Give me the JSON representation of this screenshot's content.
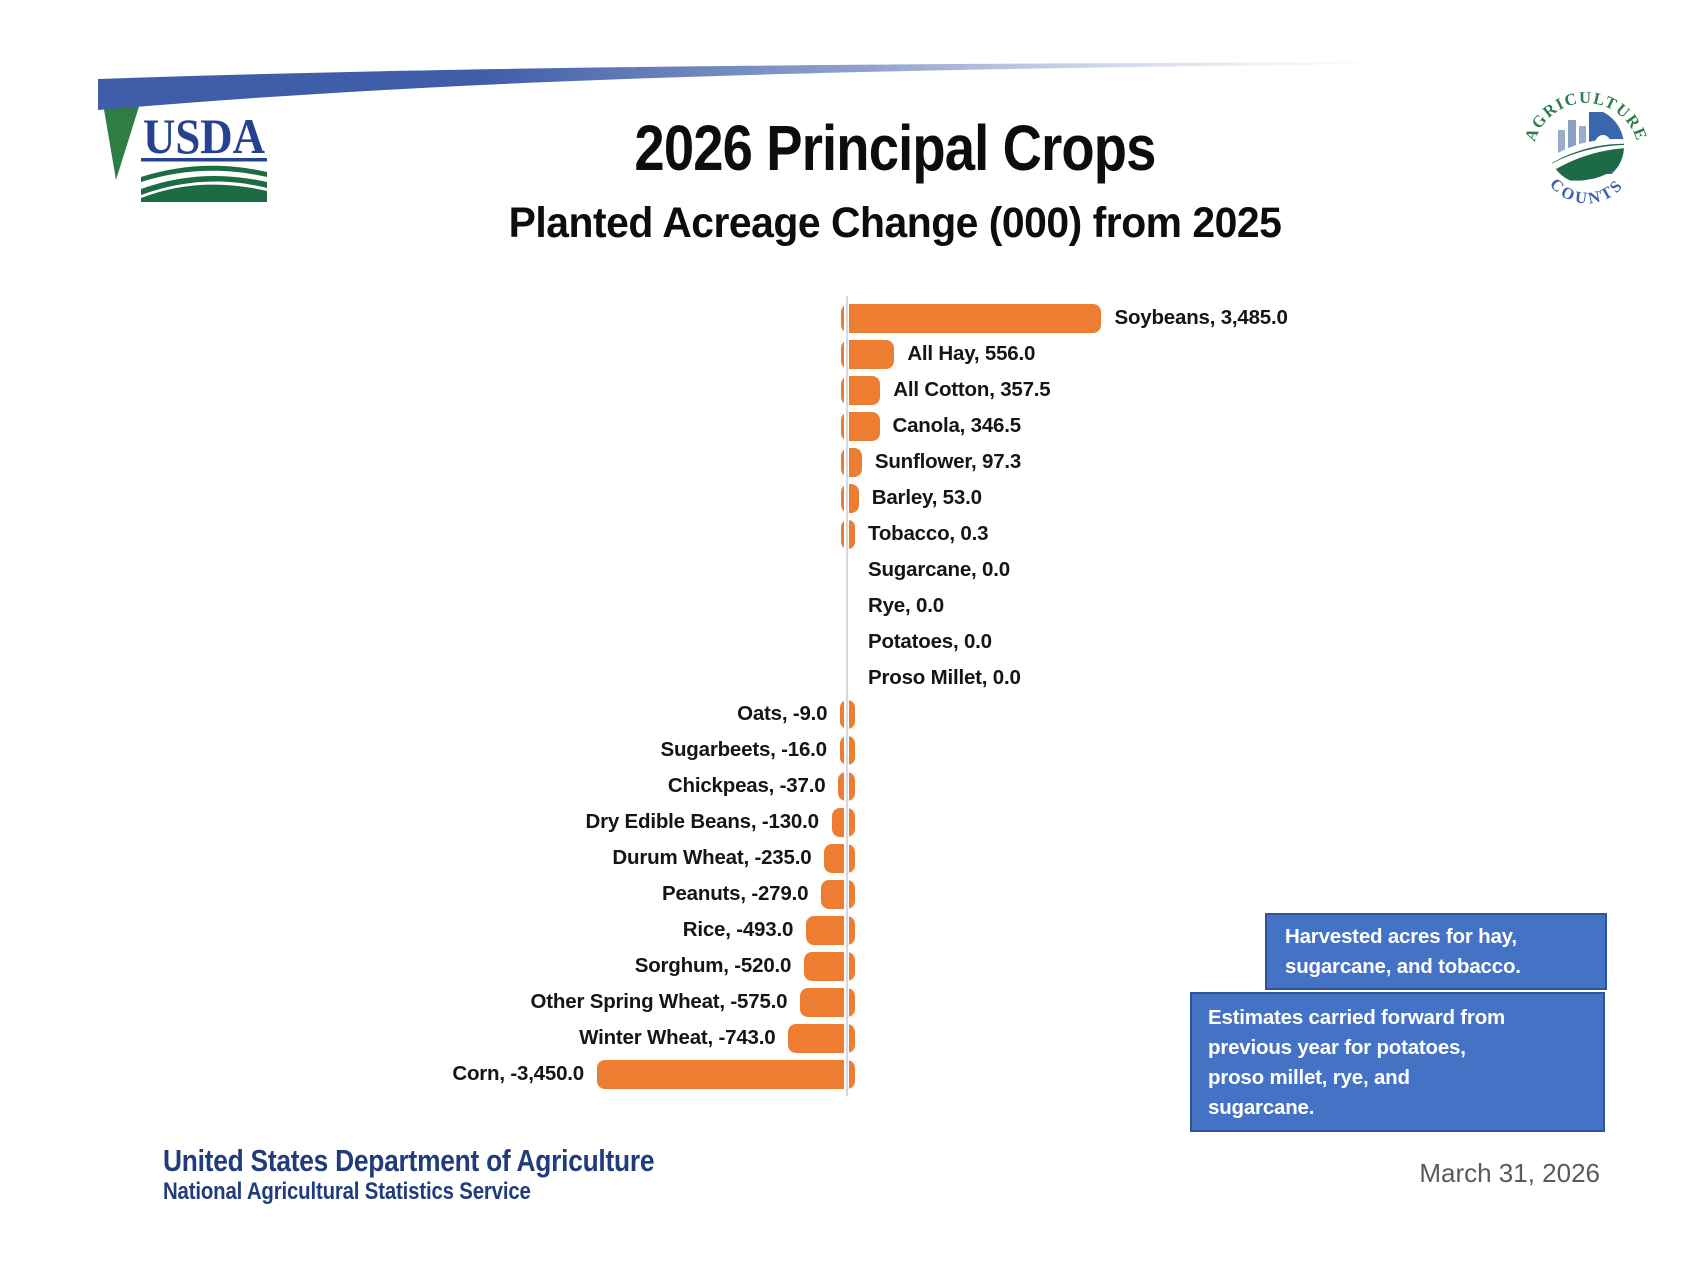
{
  "header": {
    "title": "2026 Principal Crops",
    "subtitle": "Planted Acreage Change (000) from 2025"
  },
  "usda_logo": {
    "wordmark": "USDA"
  },
  "agriculture_counts_logo": {
    "arc_top": "AGRICULTURE",
    "arc_bottom": "COUNTS"
  },
  "chart_data": {
    "type": "bar",
    "orientation": "horizontal",
    "title": "2026 Principal Crops",
    "subtitle": "Planted Acreage Change (000) from 2025",
    "units": "thousand acres (000)",
    "bar_color": "#ED7D31",
    "axis_color": "#D8D8D8",
    "xlim": [
      -3450,
      3485
    ],
    "grid": false,
    "legend": "none",
    "categories": [
      "Soybeans",
      "All Hay",
      "All Cotton",
      "Canola",
      "Sunflower",
      "Barley",
      "Tobacco",
      "Sugarcane",
      "Rye",
      "Potatoes",
      "Proso Millet",
      "Oats",
      "Sugarbeets",
      "Chickpeas",
      "Dry Edible Beans",
      "Durum Wheat",
      "Peanuts",
      "Rice",
      "Sorghum",
      "Other Spring Wheat",
      "Winter Wheat",
      "Corn"
    ],
    "values": [
      3485.0,
      556.0,
      357.5,
      346.5,
      97.3,
      53.0,
      0.3,
      0.0,
      0.0,
      0.0,
      0.0,
      -9.0,
      -16.0,
      -37.0,
      -130.0,
      -235.0,
      -279.0,
      -493.0,
      -520.0,
      -575.0,
      -743.0,
      -3450.0
    ],
    "labels": [
      "Soybeans, 3,485.0",
      "All Hay, 556.0",
      "All Cotton, 357.5",
      "Canola, 346.5",
      "Sunflower, 97.3",
      "Barley, 53.0",
      "Tobacco, 0.3",
      "Sugarcane, 0.0",
      "Rye, 0.0",
      "Potatoes, 0.0",
      "Proso Millet, 0.0",
      "Oats, -9.0",
      "Sugarbeets, -16.0",
      "Chickpeas, -37.0",
      "Dry Edible Beans, -130.0",
      "Durum Wheat, -235.0",
      "Peanuts, -279.0",
      "Rice, -493.0",
      "Sorghum, -520.0",
      "Other Spring Wheat, -575.0",
      "Winter Wheat, -743.0",
      "Corn, -3,450.0"
    ]
  },
  "notes": {
    "box_fill": "#4472C4",
    "box_border": "#2F5597",
    "note1_lines": [
      "Harvested acres for hay,",
      "sugarcane, and tobacco."
    ],
    "note2_lines": [
      "Estimates carried forward from",
      "previous year for potatoes,",
      "proso millet, rye, and",
      "sugarcane."
    ]
  },
  "footer": {
    "department": "United States Department of Agriculture",
    "service": "National Agricultural Statistics Service",
    "date": "March 31, 2026"
  }
}
